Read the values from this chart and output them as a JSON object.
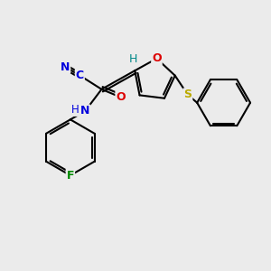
{
  "bg_color": "#ebebeb",
  "bond_color": "#000000",
  "atom_colors": {
    "N": "#0000dd",
    "O": "#dd0000",
    "F": "#008800",
    "S": "#bbaa00",
    "H": "#008888",
    "CN_label": "#0000dd"
  },
  "figsize": [
    3.0,
    3.0
  ],
  "dpi": 100
}
